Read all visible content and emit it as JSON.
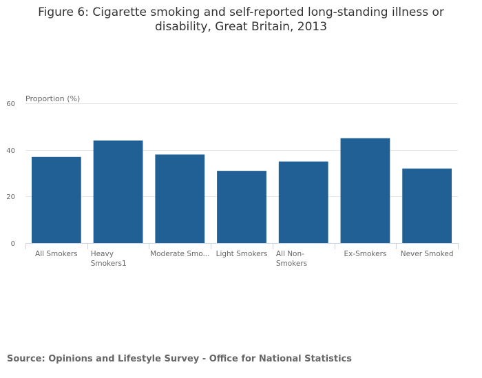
{
  "chart_data": {
    "type": "bar",
    "title": "Figure 6: Cigarette smoking and self-reported long-standing illness or disability, Great Britain, 2013",
    "ylabel": "Proportion (%)",
    "xlabel": "",
    "categories": [
      "All Smokers",
      "Heavy Smokers1",
      "Moderate Smo...",
      "Light Smokers",
      "All Non-Smokers",
      "Ex-Smokers",
      "Never Smoked"
    ],
    "category_lines": [
      [
        "All Smokers"
      ],
      [
        "Heavy",
        "Smokers1"
      ],
      [
        "Moderate Smo..."
      ],
      [
        "Light Smokers"
      ],
      [
        "All Non-",
        "Smokers"
      ],
      [
        "Ex-Smokers"
      ],
      [
        "Never Smoked"
      ]
    ],
    "values": [
      37,
      44,
      38,
      31,
      35,
      45,
      32
    ],
    "ylim": [
      0,
      60
    ],
    "yticks": [
      0,
      20,
      40,
      60
    ],
    "grid": true,
    "legend": "none",
    "bar_color": "#206095",
    "gridline_color": "#e6e6e6",
    "axis_color": "#ccd6eb"
  },
  "source": "Source: Opinions and Lifestyle Survey - Office for National Statistics"
}
